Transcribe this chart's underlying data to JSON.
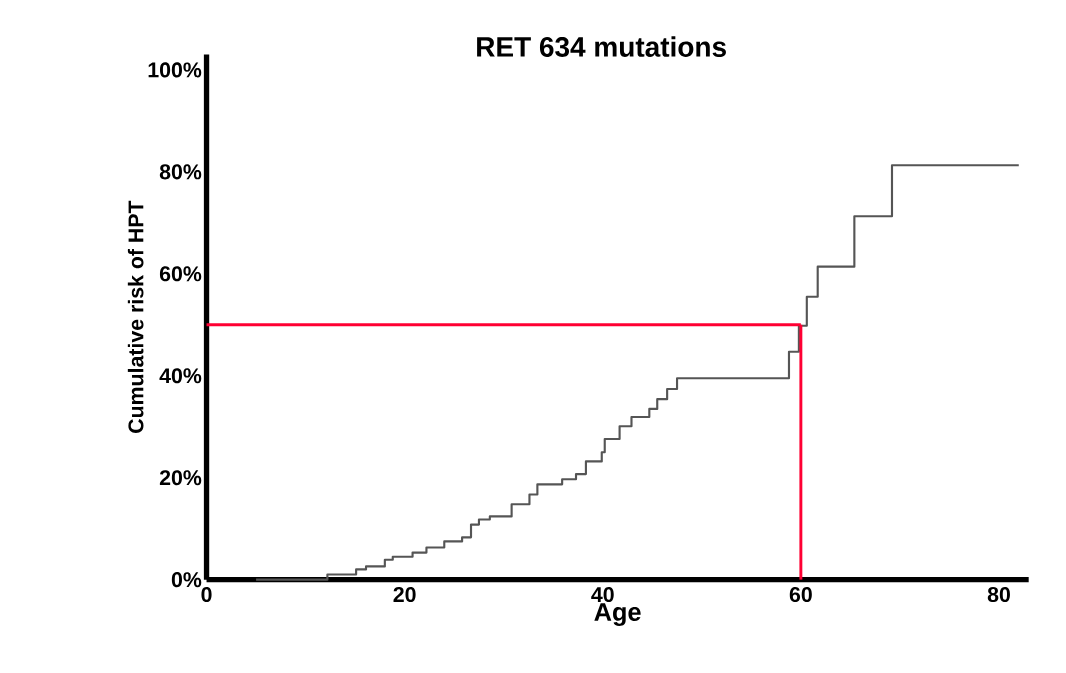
{
  "chart_data": {
    "type": "step",
    "title": "RET 634 mutations",
    "xlabel": "Age",
    "ylabel": "Cumulative risk of HPT",
    "x": [
      5,
      12.2,
      15.1,
      16.1,
      18,
      18.8,
      20.8,
      22.2,
      24,
      25.8,
      26.7,
      27.5,
      28.6,
      30.8,
      32.6,
      33.4,
      35.9,
      37.3,
      38.3,
      39.9,
      40.2,
      41.7,
      42.9,
      44.7,
      45.5,
      46.5,
      47.5,
      58.8,
      59.8,
      60.6,
      61.7,
      65.4,
      69.2,
      82
    ],
    "series": [
      {
        "color": "#555555",
        "values": [
          0,
          1,
          2,
          2.6,
          3.9,
          4.5,
          5.3,
          6.3,
          7.5,
          8.3,
          10.8,
          11.8,
          12.4,
          14.8,
          16.7,
          18.7,
          19.7,
          20.7,
          23.2,
          25,
          27.6,
          30.1,
          31.9,
          33.5,
          35.4,
          37.4,
          39.5,
          44.7,
          49.8,
          55.5,
          61.4,
          71.3,
          81.3,
          81.3
        ]
      }
    ],
    "xlim": [
      0,
      83
    ],
    "ylim": [
      0,
      103
    ],
    "xticks": [
      0,
      20,
      40,
      60,
      80
    ],
    "yticks": [
      {
        "value": 0,
        "label": "0%"
      },
      {
        "value": 20,
        "label": "20%"
      },
      {
        "value": 40,
        "label": "40%"
      },
      {
        "value": 60,
        "label": "60%"
      },
      {
        "value": 80,
        "label": "80%"
      },
      {
        "value": 100,
        "label": "100%"
      }
    ],
    "ref_lines": [
      {
        "axis": "y",
        "value": 50,
        "color": "#ff0033"
      },
      {
        "axis": "x",
        "value": 60,
        "color": "#ff0033"
      }
    ]
  }
}
